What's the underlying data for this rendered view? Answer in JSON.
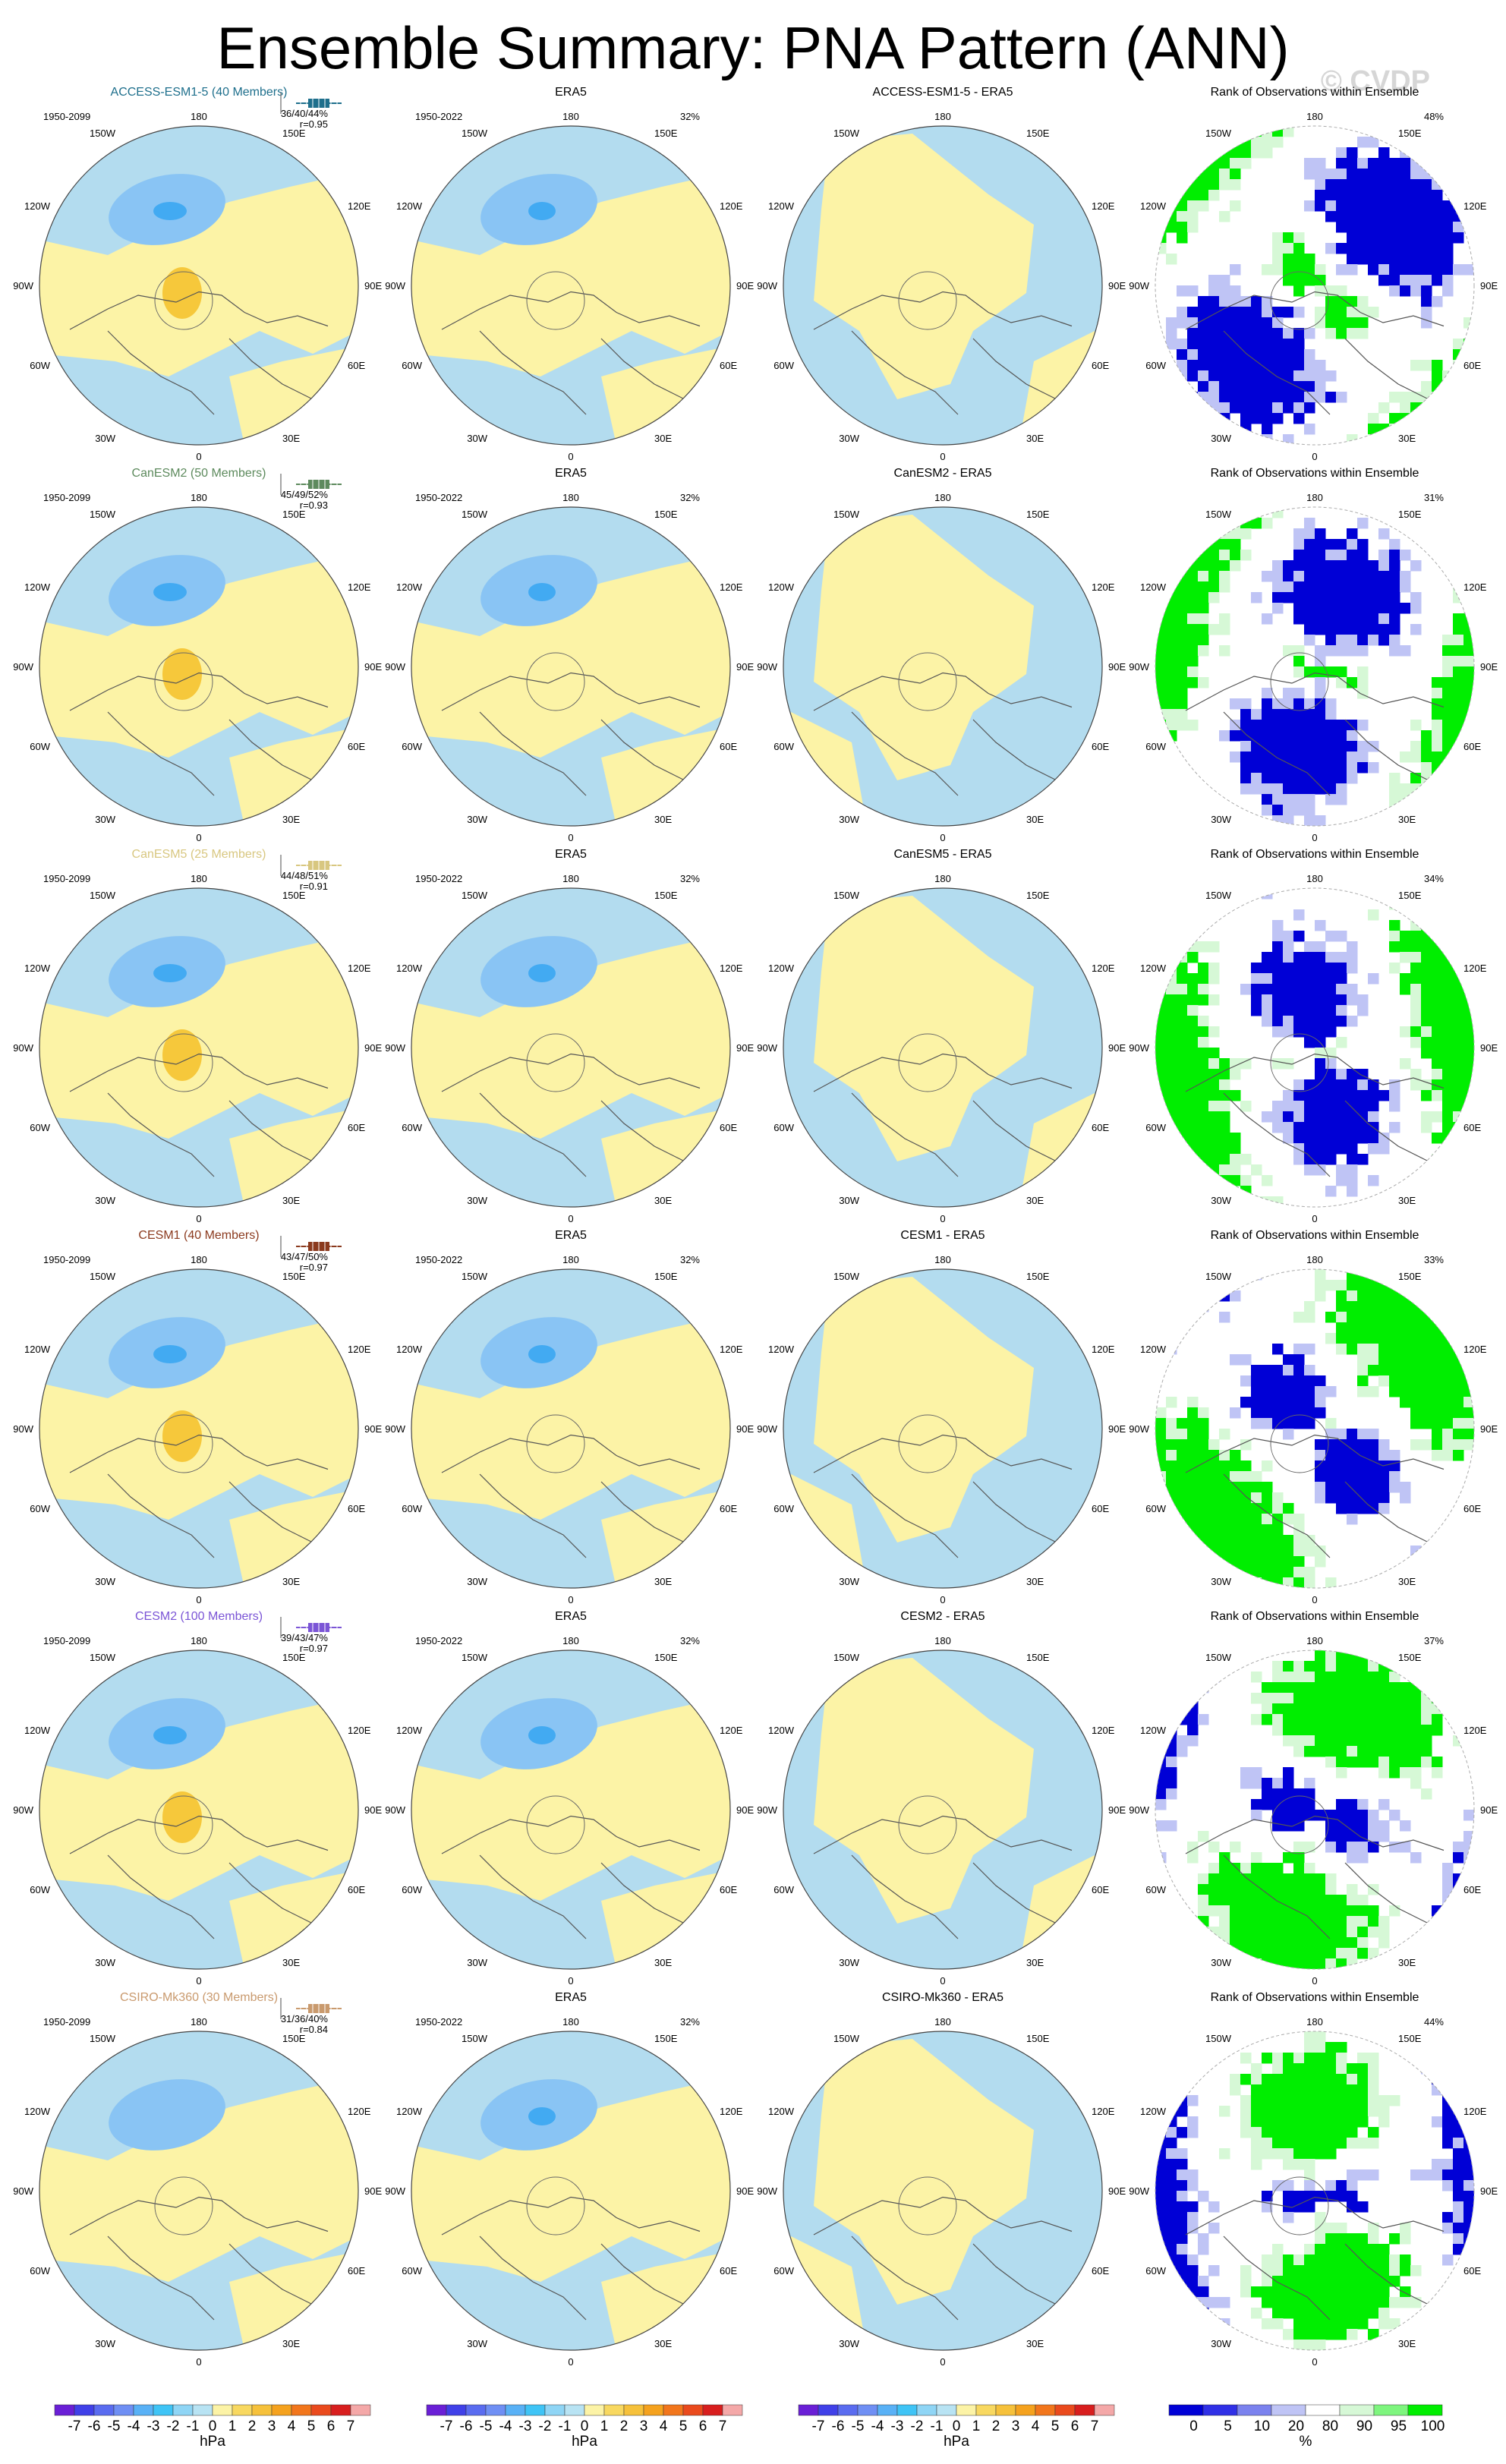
{
  "header": {
    "title": "Ensemble Summary: PNA Pattern (ANN)",
    "watermark": "© CVDP"
  },
  "colors": {
    "land_neg": "#b3dcef",
    "land_pos": "#fcf3a6",
    "neg2": "#89c4f4",
    "neg3": "#42aaf2",
    "pos2": "#f6c83b",
    "rank_blue": "#0000d6",
    "rank_green": "#00ee00",
    "rank_lightblue": "#bfc4f5",
    "rank_lightgreen": "#d6f8d6"
  },
  "longitude_labels": {
    "top": "180",
    "bottom": "0",
    "left": "90W",
    "right": "90E",
    "upper_left": "150W",
    "upper_right": "150E",
    "left_upper": "120W",
    "right_upper": "120E",
    "left_lower": "60W",
    "right_lower": "60E",
    "lower_left": "30W",
    "lower_right": "30E"
  },
  "rows": [
    {
      "model": "ACCESS-ESM1-5 (40 Members)",
      "model_color": "#1e6f8c",
      "period": "1950-2099",
      "stats": "36/40/44%",
      "r": "r=0.95",
      "obs_title": "ERA5",
      "obs_period": "1950-2022",
      "obs_pct": "32%",
      "diff_title": "ACCESS-ESM1-5 - ERA5",
      "rank_title": "Rank of Observations within Ensemble",
      "rank_pct": "48%"
    },
    {
      "model": "CanESM2 (50 Members)",
      "model_color": "#5d8a5d",
      "period": "1950-2099",
      "stats": "45/49/52%",
      "r": "r=0.93",
      "obs_title": "ERA5",
      "obs_period": "1950-2022",
      "obs_pct": "32%",
      "diff_title": "CanESM2 - ERA5",
      "rank_title": "Rank of Observations within Ensemble",
      "rank_pct": "31%"
    },
    {
      "model": "CanESM5 (25 Members)",
      "model_color": "#d8c780",
      "period": "1950-2099",
      "stats": "44/48/51%",
      "r": "r=0.91",
      "obs_title": "ERA5",
      "obs_period": "1950-2022",
      "obs_pct": "32%",
      "diff_title": "CanESM5 - ERA5",
      "rank_title": "Rank of Observations within Ensemble",
      "rank_pct": "34%"
    },
    {
      "model": "CESM1 (40 Members)",
      "model_color": "#8b3a1e",
      "period": "1950-2099",
      "stats": "43/47/50%",
      "r": "r=0.97",
      "obs_title": "ERA5",
      "obs_period": "1950-2022",
      "obs_pct": "32%",
      "diff_title": "CESM1 - ERA5",
      "rank_title": "Rank of Observations within Ensemble",
      "rank_pct": "33%"
    },
    {
      "model": "CESM2 (100 Members)",
      "model_color": "#7b55d6",
      "period": "1950-2099",
      "stats": "39/43/47%",
      "r": "r=0.97",
      "obs_title": "ERA5",
      "obs_period": "1950-2022",
      "obs_pct": "32%",
      "diff_title": "CESM2 - ERA5",
      "rank_title": "Rank of Observations within Ensemble",
      "rank_pct": "37%"
    },
    {
      "model": "CSIRO-Mk360 (30 Members)",
      "model_color": "#c99a6e",
      "period": "1950-2099",
      "stats": "31/36/40%",
      "r": "r=0.84",
      "obs_title": "ERA5",
      "obs_period": "1950-2022",
      "obs_pct": "32%",
      "diff_title": "CSIRO-Mk360 - ERA5",
      "rank_title": "Rank of Observations within Ensemble",
      "rank_pct": "44%"
    }
  ],
  "colorbars": {
    "hpa_labels": [
      "-7",
      "-6",
      "-5",
      "-4",
      "-3",
      "-2",
      "-1",
      "0",
      "1",
      "2",
      "3",
      "4",
      "5",
      "6",
      "7"
    ],
    "hpa_unit": "hPa",
    "hpa_colors": [
      "#6a1fd6",
      "#4040e8",
      "#5a6cf0",
      "#6f8ff4",
      "#59b1f6",
      "#3fc4f6",
      "#8fd5f5",
      "#b8e3f3",
      "#fcf3a6",
      "#f8d860",
      "#f6c13b",
      "#f5a21e",
      "#f2761c",
      "#ea4a1d",
      "#d81e1e",
      "#f4a8a8"
    ],
    "rank_labels": [
      "0",
      "5",
      "10",
      "20",
      "80",
      "90",
      "95",
      "100"
    ],
    "rank_unit": "%",
    "rank_colors": [
      "#0000d6",
      "#3030e6",
      "#7b82ee",
      "#bfc4f5",
      "#ffffff",
      "#d6f8d6",
      "#7ef57e",
      "#00ee00"
    ]
  }
}
